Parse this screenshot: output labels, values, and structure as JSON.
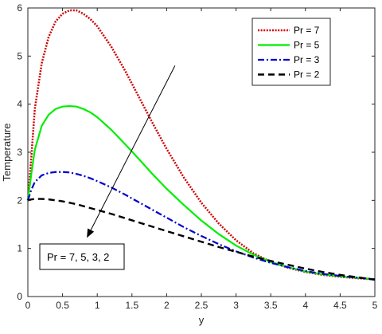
{
  "chart_data": {
    "type": "line",
    "xlabel": "y",
    "ylabel": "Temperature",
    "xlim": [
      0,
      5
    ],
    "ylim": [
      0,
      6
    ],
    "xticks": [
      "0",
      "0.5",
      "1",
      "1.5",
      "2",
      "2.5",
      "3",
      "3.5",
      "4",
      "4.5",
      "5"
    ],
    "yticks": [
      "0",
      "1",
      "2",
      "3",
      "4",
      "5",
      "6"
    ],
    "grid": false,
    "legend_position": "top-right",
    "x": [
      0,
      0.05,
      0.1,
      0.2,
      0.3,
      0.4,
      0.5,
      0.6,
      0.7,
      0.8,
      0.9,
      1.0,
      1.2,
      1.4,
      1.6,
      1.8,
      2.0,
      2.25,
      2.5,
      2.75,
      3.0,
      3.25,
      3.5,
      3.75,
      4.0,
      4.25,
      4.5,
      4.75,
      5.0
    ],
    "series": [
      {
        "name": "Pr = 7",
        "color": "#d00000",
        "style": "dotted",
        "values": [
          2.0,
          2.9,
          3.9,
          4.85,
          5.4,
          5.72,
          5.88,
          5.95,
          5.95,
          5.88,
          5.77,
          5.62,
          5.2,
          4.7,
          4.15,
          3.6,
          3.07,
          2.47,
          1.95,
          1.52,
          1.17,
          0.9,
          0.72,
          0.6,
          0.51,
          0.45,
          0.41,
          0.38,
          0.36
        ]
      },
      {
        "name": "Pr = 5",
        "color": "#00ee00",
        "style": "solid",
        "values": [
          2.0,
          2.55,
          3.05,
          3.55,
          3.78,
          3.9,
          3.95,
          3.96,
          3.95,
          3.9,
          3.83,
          3.73,
          3.47,
          3.17,
          2.86,
          2.54,
          2.24,
          1.9,
          1.58,
          1.3,
          1.06,
          0.87,
          0.72,
          0.61,
          0.52,
          0.46,
          0.42,
          0.39,
          0.36
        ]
      },
      {
        "name": "Pr = 3",
        "color": "#0000cc",
        "style": "dashdot",
        "values": [
          2.0,
          2.22,
          2.38,
          2.52,
          2.57,
          2.59,
          2.59,
          2.58,
          2.55,
          2.51,
          2.46,
          2.4,
          2.27,
          2.12,
          1.96,
          1.8,
          1.64,
          1.44,
          1.26,
          1.09,
          0.94,
          0.81,
          0.7,
          0.61,
          0.53,
          0.47,
          0.43,
          0.39,
          0.36
        ]
      },
      {
        "name": "Pr = 2",
        "color": "#000000",
        "style": "dashed",
        "values": [
          2.0,
          2.02,
          2.03,
          2.03,
          2.02,
          2.0,
          1.98,
          1.95,
          1.92,
          1.88,
          1.84,
          1.8,
          1.72,
          1.63,
          1.54,
          1.45,
          1.36,
          1.25,
          1.14,
          1.03,
          0.93,
          0.83,
          0.74,
          0.66,
          0.58,
          0.51,
          0.45,
          0.4,
          0.35
        ]
      }
    ],
    "annotation": {
      "text": "Pr = 7, 5, 3, 2",
      "arrow_from": [
        2.12,
        4.8
      ],
      "arrow_to": [
        0.85,
        1.22
      ]
    }
  }
}
